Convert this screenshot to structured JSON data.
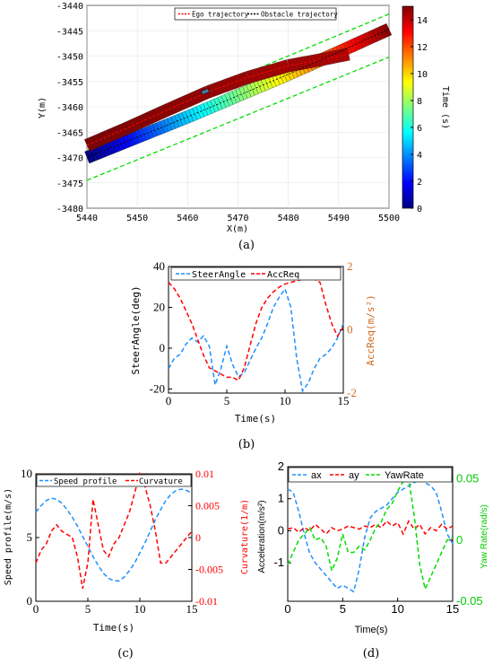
{
  "captions": {
    "a": "(a)",
    "b": "(b)",
    "c": "(c)",
    "d": "(d)"
  },
  "chart_data": [
    {
      "id": "a",
      "type": "scatter",
      "xlabel": "X(m)",
      "ylabel": "Y(m)",
      "xlim": [
        5440,
        5500
      ],
      "ylim": [
        -3480,
        -3440
      ],
      "xticks": [
        "5440",
        "5450",
        "5460",
        "5470",
        "5480",
        "5490",
        "5500"
      ],
      "yticks": [
        "-3440",
        "-3445",
        "-3450",
        "-3455",
        "-3460",
        "-3465",
        "-3470",
        "-3475",
        "-3480"
      ],
      "legend": [
        "Ego trajectory",
        "Obstacle trajectory"
      ],
      "legend_position": "top",
      "colorbar": {
        "label": "Time (s)",
        "ticks": [
          "0",
          "2",
          "4",
          "6",
          "8",
          "10",
          "12",
          "14"
        ],
        "range": [
          0,
          15
        ]
      },
      "lane_lines": {
        "color": "#00dd00",
        "style": "dashed",
        "lines": [
          {
            "x": [
              5440,
              5500
            ],
            "y": [
              -3466.5,
              -3441.7
            ]
          },
          {
            "x": [
              5440,
              5500
            ],
            "y": [
              -3474.5,
              -3450.2
            ]
          }
        ]
      },
      "ego": {
        "x": [
          5440,
          5448,
          5456,
          5464,
          5472,
          5480,
          5486,
          5492
        ],
        "y": [
          -3467.6,
          -3464.2,
          -3460.6,
          -3457.1,
          -3454.2,
          -3451.9,
          -3450.8,
          -3449.6
        ]
      },
      "obstacle": {
        "x": [
          5440,
          5450,
          5460,
          5470,
          5480,
          5490,
          5500
        ],
        "y": [
          -3470.0,
          -3466.0,
          -3462.0,
          -3457.8,
          -3453.6,
          -3449.2,
          -3444.7
        ]
      },
      "obstacle_small_marker": {
        "x": 5463.5,
        "y": -3457.0
      },
      "grid": true
    },
    {
      "id": "b",
      "type": "line",
      "xlabel": "Time(s)",
      "ylabel": "SteerAngle(deg)",
      "ylabel_right": "AccReq(m/s²)",
      "xlim": [
        0,
        15
      ],
      "ylim": [
        -22,
        40
      ],
      "ylim_right": [
        -2,
        2
      ],
      "xticks": [
        "0",
        "5",
        "10",
        "15"
      ],
      "yticks": [
        "-20",
        "0",
        "20",
        "40"
      ],
      "yticks_right": [
        "-2",
        "0",
        "2"
      ],
      "legend_position": "top",
      "series": [
        {
          "name": "SteerAngle",
          "axis": "left",
          "color": "#1e90ff",
          "style": "dashed",
          "x": [
            0,
            0.5,
            1,
            1.5,
            2,
            2.5,
            3,
            3.5,
            4,
            4.5,
            5,
            5.5,
            6,
            6.5,
            7,
            7.5,
            8,
            8.5,
            9,
            9.5,
            10,
            10.5,
            11,
            11.5,
            12,
            12.5,
            13,
            13.5,
            14,
            14.5,
            15
          ],
          "y": [
            -10,
            -5,
            -3,
            2,
            5,
            3,
            6,
            1,
            -18,
            -10,
            1,
            -8,
            -14,
            -12,
            -6,
            0,
            5,
            12,
            20,
            25,
            29,
            20,
            -5,
            -21,
            -17,
            -10,
            -5,
            -3,
            0,
            5,
            12
          ]
        },
        {
          "name": "AccReq",
          "axis": "right",
          "color": "#ff0000",
          "style": "dashed",
          "x": [
            0,
            0.5,
            1,
            1.5,
            2,
            2.5,
            3,
            3.5,
            4,
            4.5,
            5,
            5.5,
            6,
            6.5,
            7,
            7.5,
            8,
            8.5,
            9,
            9.5,
            10,
            10.5,
            11,
            11.5,
            12,
            12.5,
            13,
            13.5,
            14,
            14.5,
            15
          ],
          "y": [
            1.5,
            1.3,
            1.0,
            0.6,
            0.2,
            -0.3,
            -0.8,
            -1.2,
            -1.3,
            -1.4,
            -1.5,
            -1.5,
            -1.6,
            -1.2,
            -0.5,
            0.2,
            0.7,
            1.0,
            1.2,
            1.35,
            1.45,
            1.5,
            1.55,
            1.6,
            1.6,
            1.6,
            1.5,
            0.8,
            0.2,
            -0.2,
            0.1
          ]
        }
      ],
      "grid": false
    },
    {
      "id": "c",
      "type": "line",
      "xlabel": "Time(s)",
      "ylabel": "Speed profile(m/s)",
      "ylabel_right": "Curvature(1/m)",
      "xlim": [
        0,
        15
      ],
      "ylim": [
        0,
        10
      ],
      "ylim_right": [
        -0.01,
        0.01
      ],
      "xticks": [
        "0",
        "5",
        "10",
        "15"
      ],
      "yticks": [
        "0",
        "5",
        "10"
      ],
      "yticks_right": [
        "-0.01",
        "-0.005",
        "0",
        "0.005",
        "0.01"
      ],
      "legend_position": "top",
      "series": [
        {
          "name": "Speed profile",
          "axis": "left",
          "color": "#1e90ff",
          "style": "dashed",
          "x": [
            0,
            0.5,
            1,
            1.5,
            2,
            2.5,
            3,
            3.5,
            4,
            4.5,
            5,
            5.5,
            6,
            6.5,
            7,
            7.5,
            8,
            8.5,
            9,
            9.5,
            10,
            10.5,
            11,
            11.5,
            12,
            12.5,
            13,
            13.5,
            14,
            14.5,
            15
          ],
          "y": [
            7,
            7.5,
            7.9,
            8.1,
            8.0,
            7.7,
            7.2,
            6.6,
            5.9,
            5.1,
            4.3,
            3.5,
            2.8,
            2.2,
            1.8,
            1.6,
            1.6,
            1.9,
            2.4,
            3.0,
            3.8,
            4.6,
            5.5,
            6.4,
            7.2,
            7.9,
            8.4,
            8.7,
            8.8,
            8.7,
            8.5
          ]
        },
        {
          "name": "Curvature",
          "axis": "right",
          "color": "#ff0000",
          "style": "dashed",
          "x": [
            0,
            0.5,
            1,
            1.5,
            2,
            2.5,
            3,
            3.5,
            4,
            4.5,
            5,
            5.5,
            6,
            6.5,
            7,
            7.5,
            8,
            8.5,
            9,
            9.5,
            10,
            10.5,
            11,
            11.5,
            12,
            12.5,
            13,
            13.5,
            14,
            14.5,
            15
          ],
          "y": [
            -0.004,
            -0.002,
            -0.001,
            0.001,
            0.002,
            0.001,
            0.0005,
            0.0,
            -0.003,
            -0.008,
            -0.004,
            0.006,
            0.002,
            -0.002,
            -0.003,
            -0.001,
            0.0,
            0.002,
            0.004,
            0.007,
            0.01,
            0.008,
            0.005,
            0.001,
            -0.004,
            -0.004,
            -0.003,
            -0.002,
            -0.001,
            0.0,
            0.001
          ]
        }
      ],
      "grid": false
    },
    {
      "id": "d",
      "type": "line",
      "xlabel": "Time(s)",
      "ylabel": "Acceleration(m/s²)",
      "ylabel_right": "Yaw Rate(rad/s)",
      "xlim": [
        0,
        15
      ],
      "ylim": [
        -2.2,
        2
      ],
      "ylim_right": [
        -0.05,
        0.06
      ],
      "xticks": [
        "0",
        "5",
        "10",
        "15"
      ],
      "yticks": [
        "-1",
        "0",
        "1",
        "2"
      ],
      "yticks_right": [
        "-0.05",
        "0",
        "0.05"
      ],
      "legend_position": "top",
      "series": [
        {
          "name": "ax",
          "axis": "left",
          "color": "#1e90ff",
          "style": "dashed",
          "x": [
            0,
            0.5,
            1,
            1.5,
            2,
            2.5,
            3,
            3.5,
            4,
            4.5,
            5,
            5.5,
            6,
            6.5,
            7,
            7.5,
            8,
            8.5,
            9,
            9.5,
            10,
            10.5,
            11,
            11.5,
            12,
            12.5,
            13,
            13.5,
            14,
            14.5,
            15
          ],
          "y": [
            1.3,
            1.2,
            0.6,
            -0.1,
            -0.7,
            -1.0,
            -1.2,
            -1.4,
            -1.6,
            -1.8,
            -1.7,
            -1.8,
            -1.9,
            -1.2,
            -0.2,
            0.4,
            0.6,
            0.7,
            0.8,
            1.0,
            1.2,
            1.3,
            1.4,
            1.5,
            1.6,
            1.5,
            1.4,
            1.2,
            0.6,
            -0.1,
            -0.4
          ]
        },
        {
          "name": "ay",
          "axis": "left",
          "color": "#ff0000",
          "style": "dashed",
          "x": [
            0,
            0.5,
            1,
            1.5,
            2,
            2.5,
            3,
            3.5,
            4,
            4.5,
            5,
            5.5,
            6,
            6.5,
            7,
            7.5,
            8,
            8.5,
            9,
            9.5,
            10,
            10.5,
            11,
            11.5,
            12,
            12.5,
            13,
            13.5,
            14,
            14.5,
            15
          ],
          "y": [
            0.05,
            0.1,
            -0.05,
            0.1,
            0.0,
            0.2,
            0.05,
            -0.1,
            0.1,
            0.0,
            0.05,
            0.15,
            0.1,
            0.05,
            0.15,
            0.1,
            0.2,
            0.1,
            0.3,
            0.15,
            0.25,
            -0.1,
            0.3,
            0.05,
            0.2,
            -0.1,
            0.1,
            0.0,
            0.2,
            0.05,
            0.15
          ]
        },
        {
          "name": "YawRate",
          "axis": "right",
          "color": "#00dd00",
          "style": "dashed",
          "x": [
            0,
            0.5,
            1,
            1.5,
            2,
            2.5,
            3,
            3.5,
            4,
            4.5,
            5,
            5.5,
            6,
            6.5,
            7,
            7.5,
            8,
            8.5,
            9,
            9.5,
            10,
            10.5,
            11,
            11.5,
            12,
            12.5,
            13,
            13.5,
            14,
            14.5,
            15
          ],
          "y": [
            -0.02,
            -0.01,
            0.0,
            0.005,
            0.01,
            0.0,
            0.002,
            -0.005,
            -0.025,
            -0.015,
            0.005,
            -0.01,
            -0.01,
            -0.005,
            -0.008,
            0.0,
            0.01,
            0.015,
            0.025,
            0.03,
            0.04,
            0.048,
            0.05,
            0.02,
            -0.02,
            -0.04,
            -0.03,
            -0.02,
            -0.01,
            0.0,
            0.002
          ]
        }
      ],
      "grid": false
    }
  ]
}
